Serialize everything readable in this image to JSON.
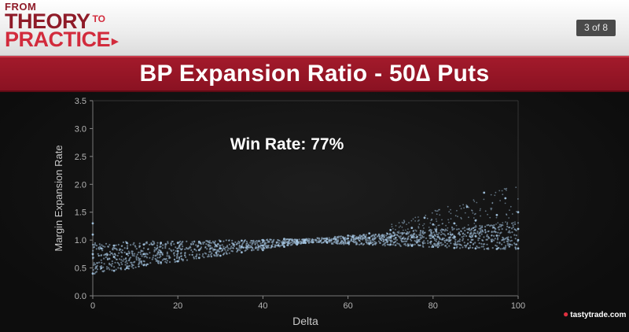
{
  "header": {
    "logo_from": "FROM",
    "logo_theory": "THEORY",
    "logo_to": "TO",
    "logo_practice": "PRACTICE",
    "page_indicator": "3 of 8"
  },
  "title": "BP Expansion Ratio - 50∆ Puts",
  "brand": "tastytrade.com",
  "colors": {
    "brand_red": "#8f1b28",
    "accent_red": "#d22b3c",
    "point_color": "#a9cbe8"
  },
  "chart_data": {
    "type": "scatter",
    "xlabel": "Delta",
    "ylabel": "Margin Expansion Rate",
    "xlim": [
      0,
      100
    ],
    "ylim": [
      0,
      3.5
    ],
    "xticks": [
      0,
      20,
      40,
      60,
      80,
      100
    ],
    "yticks": [
      0.0,
      0.5,
      1.0,
      1.5,
      2.0,
      2.5,
      3.0,
      3.5
    ],
    "annotation": "Win Rate: 77%",
    "grid": false,
    "series": [
      {
        "points": [
          [
            0,
            0.4
          ],
          [
            0,
            0.75
          ],
          [
            0,
            1.1
          ],
          [
            0,
            1.3
          ],
          [
            2,
            0.5
          ],
          [
            2,
            0.85
          ],
          [
            5,
            0.45
          ],
          [
            5,
            0.7
          ],
          [
            5,
            0.9
          ],
          [
            8,
            0.5
          ],
          [
            8,
            0.75
          ],
          [
            8,
            0.95
          ],
          [
            12,
            0.55
          ],
          [
            12,
            0.75
          ],
          [
            12,
            0.92
          ],
          [
            16,
            0.6
          ],
          [
            16,
            0.78
          ],
          [
            16,
            0.95
          ],
          [
            20,
            0.62
          ],
          [
            20,
            0.8
          ],
          [
            20,
            0.95
          ],
          [
            25,
            0.68
          ],
          [
            25,
            0.82
          ],
          [
            25,
            0.97
          ],
          [
            30,
            0.72
          ],
          [
            30,
            0.85
          ],
          [
            30,
            0.98
          ],
          [
            35,
            0.78
          ],
          [
            35,
            0.88
          ],
          [
            35,
            0.99
          ],
          [
            40,
            0.82
          ],
          [
            40,
            0.9
          ],
          [
            40,
            1.0
          ],
          [
            45,
            0.88
          ],
          [
            45,
            0.95
          ],
          [
            45,
            1.02
          ],
          [
            48,
            0.92
          ],
          [
            48,
            0.98
          ],
          [
            50,
            0.95
          ],
          [
            50,
            1.0
          ],
          [
            55,
            0.96
          ],
          [
            55,
            1.02
          ],
          [
            60,
            0.95
          ],
          [
            60,
            1.03
          ],
          [
            60,
            1.08
          ],
          [
            65,
            0.93
          ],
          [
            65,
            1.04
          ],
          [
            65,
            1.12
          ],
          [
            70,
            0.92
          ],
          [
            70,
            1.05
          ],
          [
            70,
            1.18
          ],
          [
            75,
            0.9
          ],
          [
            75,
            1.05
          ],
          [
            75,
            1.22
          ],
          [
            78,
            1.4
          ],
          [
            80,
            0.88
          ],
          [
            80,
            1.06
          ],
          [
            80,
            1.28
          ],
          [
            85,
            0.86
          ],
          [
            85,
            1.06
          ],
          [
            85,
            1.3
          ],
          [
            88,
            1.6
          ],
          [
            90,
            0.85
          ],
          [
            90,
            1.07
          ],
          [
            90,
            1.35
          ],
          [
            92,
            1.85
          ],
          [
            95,
            0.84
          ],
          [
            95,
            1.08
          ],
          [
            95,
            1.45
          ],
          [
            97,
            1.75
          ],
          [
            100,
            0.85
          ],
          [
            100,
            1.0
          ],
          [
            100,
            1.2
          ],
          [
            100,
            1.5
          ]
        ]
      }
    ]
  }
}
